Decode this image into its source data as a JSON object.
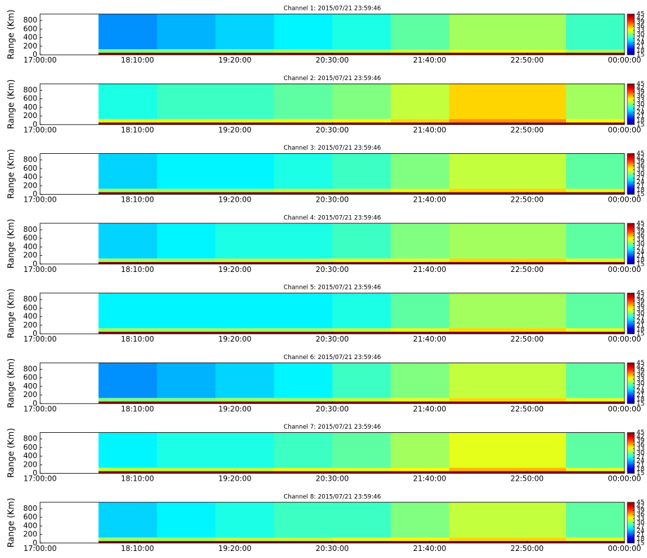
{
  "chart_data": [
    {
      "type": "heatmap",
      "title": "Channel 1: 2015/07/21 23:59:46",
      "ylabel": "Range (Km)",
      "colormap": "jet",
      "x_bins": [
        42,
        84,
        126,
        168,
        210,
        252,
        294,
        336,
        378,
        420
      ],
      "y_bins": [
        0,
        50,
        130,
        950
      ],
      "z": [
        [
          45,
          45,
          45,
          45,
          45,
          45,
          45,
          45,
          45
        ],
        [
          30,
          30,
          30,
          31,
          31,
          32,
          33,
          33,
          31
        ],
        [
          23,
          24,
          25,
          26,
          27,
          29,
          31,
          31,
          28
        ]
      ],
      "xlim": [
        0,
        420
      ],
      "xticks": [
        {
          "value": 0,
          "label": "17:00:00"
        },
        {
          "value": 70,
          "label": "18:10:00"
        },
        {
          "value": 140,
          "label": "19:20:00"
        },
        {
          "value": 210,
          "label": "20:30:00"
        },
        {
          "value": 280,
          "label": "21:40:00"
        },
        {
          "value": 350,
          "label": "22:50:00"
        },
        {
          "value": 420,
          "label": "00:00:00"
        }
      ],
      "ylim": [
        0,
        950
      ],
      "yticks": [
        0,
        200,
        400,
        600,
        800
      ],
      "clim": [
        15,
        45
      ],
      "cticks": [
        15,
        18,
        21,
        24,
        27,
        30,
        33,
        36,
        39,
        42,
        45
      ]
    },
    {
      "type": "heatmap",
      "title": "Channel 2: 2015/07/21 23:59:46",
      "ylabel": "Range (Km)",
      "colormap": "jet",
      "x_bins": [
        42,
        84,
        126,
        168,
        210,
        252,
        294,
        336,
        378,
        420
      ],
      "y_bins": [
        0,
        50,
        130,
        950
      ],
      "z": [
        [
          45,
          45,
          45,
          45,
          45,
          45,
          45,
          45,
          45
        ],
        [
          33,
          33,
          33,
          33,
          34,
          35,
          37,
          37,
          34
        ],
        [
          27,
          28,
          28,
          29,
          30,
          32,
          35,
          35,
          31
        ]
      ],
      "xlim": [
        0,
        420
      ],
      "xticks": [
        {
          "value": 0,
          "label": "17:00:00"
        },
        {
          "value": 70,
          "label": "18:10:00"
        },
        {
          "value": 140,
          "label": "19:20:00"
        },
        {
          "value": 210,
          "label": "20:30:00"
        },
        {
          "value": 280,
          "label": "21:40:00"
        },
        {
          "value": 350,
          "label": "22:50:00"
        },
        {
          "value": 420,
          "label": "00:00:00"
        }
      ],
      "ylim": [
        0,
        950
      ],
      "yticks": [
        0,
        200,
        400,
        600,
        800
      ],
      "clim": [
        15,
        45
      ],
      "cticks": [
        15,
        18,
        21,
        24,
        27,
        30,
        33,
        36,
        39,
        42,
        45
      ]
    },
    {
      "type": "heatmap",
      "title": "Channel 3: 2015/07/21 23:59:46",
      "ylabel": "Range (Km)",
      "colormap": "jet",
      "x_bins": [
        42,
        84,
        126,
        168,
        210,
        252,
        294,
        336,
        378,
        420
      ],
      "y_bins": [
        0,
        50,
        130,
        950
      ],
      "z": [
        [
          45,
          45,
          45,
          45,
          45,
          45,
          45,
          45,
          45
        ],
        [
          31,
          31,
          31,
          32,
          32,
          33,
          35,
          35,
          33
        ],
        [
          25,
          26,
          26,
          27,
          28,
          30,
          32,
          32,
          29
        ]
      ],
      "xlim": [
        0,
        420
      ],
      "xticks": [
        {
          "value": 0,
          "label": "17:00:00"
        },
        {
          "value": 70,
          "label": "18:10:00"
        },
        {
          "value": 140,
          "label": "19:20:00"
        },
        {
          "value": 210,
          "label": "20:30:00"
        },
        {
          "value": 280,
          "label": "21:40:00"
        },
        {
          "value": 350,
          "label": "22:50:00"
        },
        {
          "value": 420,
          "label": "00:00:00"
        }
      ],
      "ylim": [
        0,
        950
      ],
      "yticks": [
        0,
        200,
        400,
        600,
        800
      ],
      "clim": [
        15,
        45
      ],
      "cticks": [
        15,
        18,
        21,
        24,
        27,
        30,
        33,
        36,
        39,
        42,
        45
      ]
    },
    {
      "type": "heatmap",
      "title": "Channel 4: 2015/07/21 23:59:46",
      "ylabel": "Range (Km)",
      "colormap": "jet",
      "x_bins": [
        42,
        84,
        126,
        168,
        210,
        252,
        294,
        336,
        378,
        420
      ],
      "y_bins": [
        0,
        50,
        130,
        950
      ],
      "z": [
        [
          45,
          45,
          45,
          45,
          45,
          45,
          45,
          45,
          45
        ],
        [
          31,
          31,
          32,
          32,
          33,
          33,
          35,
          35,
          33
        ],
        [
          25,
          26,
          27,
          27,
          28,
          30,
          31,
          31,
          29
        ]
      ],
      "xlim": [
        0,
        420
      ],
      "xticks": [
        {
          "value": 0,
          "label": "17:00:00"
        },
        {
          "value": 70,
          "label": "18:10:00"
        },
        {
          "value": 140,
          "label": "19:20:00"
        },
        {
          "value": 210,
          "label": "20:30:00"
        },
        {
          "value": 280,
          "label": "21:40:00"
        },
        {
          "value": 350,
          "label": "22:50:00"
        },
        {
          "value": 420,
          "label": "00:00:00"
        }
      ],
      "ylim": [
        0,
        950
      ],
      "yticks": [
        0,
        200,
        400,
        600,
        800
      ],
      "clim": [
        15,
        45
      ],
      "cticks": [
        15,
        18,
        21,
        24,
        27,
        30,
        33,
        36,
        39,
        42,
        45
      ]
    },
    {
      "type": "heatmap",
      "title": "Channel 5: 2015/07/21 23:59:46",
      "ylabel": "Range (Km)",
      "colormap": "jet",
      "x_bins": [
        42,
        84,
        126,
        168,
        210,
        252,
        294,
        336,
        378,
        420
      ],
      "y_bins": [
        0,
        50,
        130,
        950
      ],
      "z": [
        [
          45,
          45,
          45,
          45,
          45,
          45,
          45,
          45,
          45
        ],
        [
          31,
          31,
          31,
          31,
          32,
          33,
          35,
          35,
          33
        ],
        [
          26,
          26,
          26,
          26,
          27,
          29,
          31,
          31,
          29
        ]
      ],
      "xlim": [
        0,
        420
      ],
      "xticks": [
        {
          "value": 0,
          "label": "17:00:00"
        },
        {
          "value": 70,
          "label": "18:10:00"
        },
        {
          "value": 140,
          "label": "19:20:00"
        },
        {
          "value": 210,
          "label": "20:30:00"
        },
        {
          "value": 280,
          "label": "21:40:00"
        },
        {
          "value": 350,
          "label": "22:50:00"
        },
        {
          "value": 420,
          "label": "00:00:00"
        }
      ],
      "ylim": [
        0,
        950
      ],
      "yticks": [
        0,
        200,
        400,
        600,
        800
      ],
      "clim": [
        15,
        45
      ],
      "cticks": [
        15,
        18,
        21,
        24,
        27,
        30,
        33,
        36,
        39,
        42,
        45
      ]
    },
    {
      "type": "heatmap",
      "title": "Channel 6: 2015/07/21 23:59:46",
      "ylabel": "Range (Km)",
      "colormap": "jet",
      "x_bins": [
        42,
        84,
        126,
        168,
        210,
        252,
        294,
        336,
        378,
        420
      ],
      "y_bins": [
        0,
        50,
        130,
        950
      ],
      "z": [
        [
          45,
          45,
          45,
          45,
          45,
          45,
          45,
          45,
          45
        ],
        [
          30,
          30,
          31,
          31,
          32,
          33,
          35,
          35,
          33
        ],
        [
          23,
          24,
          25,
          26,
          28,
          30,
          32,
          32,
          29
        ]
      ],
      "xlim": [
        0,
        420
      ],
      "xticks": [
        {
          "value": 0,
          "label": "17:00:00"
        },
        {
          "value": 70,
          "label": "18:10:00"
        },
        {
          "value": 140,
          "label": "19:20:00"
        },
        {
          "value": 210,
          "label": "20:30:00"
        },
        {
          "value": 280,
          "label": "21:40:00"
        },
        {
          "value": 350,
          "label": "22:50:00"
        },
        {
          "value": 420,
          "label": "00:00:00"
        }
      ],
      "ylim": [
        0,
        950
      ],
      "yticks": [
        0,
        200,
        400,
        600,
        800
      ],
      "clim": [
        15,
        45
      ],
      "cticks": [
        15,
        18,
        21,
        24,
        27,
        30,
        33,
        36,
        39,
        42,
        45
      ]
    },
    {
      "type": "heatmap",
      "title": "Channel 7: 2015/07/21 23:59:46",
      "ylabel": "Range (Km)",
      "colormap": "jet",
      "x_bins": [
        42,
        84,
        126,
        168,
        210,
        252,
        294,
        336,
        378,
        420
      ],
      "y_bins": [
        0,
        50,
        130,
        950
      ],
      "z": [
        [
          45,
          45,
          45,
          45,
          45,
          45,
          45,
          45,
          45
        ],
        [
          32,
          32,
          32,
          33,
          33,
          34,
          36,
          36,
          33
        ],
        [
          26,
          27,
          27,
          28,
          29,
          31,
          33,
          33,
          29
        ]
      ],
      "xlim": [
        0,
        420
      ],
      "xticks": [
        {
          "value": 0,
          "label": "17:00:00"
        },
        {
          "value": 70,
          "label": "18:10:00"
        },
        {
          "value": 140,
          "label": "19:20:00"
        },
        {
          "value": 210,
          "label": "20:30:00"
        },
        {
          "value": 280,
          "label": "21:40:00"
        },
        {
          "value": 350,
          "label": "22:50:00"
        },
        {
          "value": 420,
          "label": "00:00:00"
        }
      ],
      "ylim": [
        0,
        950
      ],
      "yticks": [
        0,
        200,
        400,
        600,
        800
      ],
      "clim": [
        15,
        45
      ],
      "cticks": [
        15,
        18,
        21,
        24,
        27,
        30,
        33,
        36,
        39,
        42,
        45
      ]
    },
    {
      "type": "heatmap",
      "title": "Channel 8: 2015/07/21 23:59:46",
      "ylabel": "Range (Km)",
      "colormap": "jet",
      "x_bins": [
        42,
        84,
        126,
        168,
        210,
        252,
        294,
        336,
        378,
        420
      ],
      "y_bins": [
        0,
        50,
        130,
        950
      ],
      "z": [
        [
          45,
          45,
          45,
          45,
          45,
          45,
          45,
          45,
          45
        ],
        [
          31,
          31,
          32,
          32,
          33,
          34,
          35,
          35,
          33
        ],
        [
          25,
          26,
          27,
          28,
          28,
          30,
          32,
          32,
          29
        ]
      ],
      "xlim": [
        0,
        420
      ],
      "xticks": [
        {
          "value": 0,
          "label": "17:00:00"
        },
        {
          "value": 70,
          "label": "18:10:00"
        },
        {
          "value": 140,
          "label": "19:20:00"
        },
        {
          "value": 210,
          "label": "20:30:00"
        },
        {
          "value": 280,
          "label": "21:40:00"
        },
        {
          "value": 350,
          "label": "22:50:00"
        },
        {
          "value": 420,
          "label": "00:00:00"
        }
      ],
      "ylim": [
        0,
        950
      ],
      "yticks": [
        0,
        200,
        400,
        600,
        800
      ],
      "clim": [
        15,
        45
      ],
      "cticks": [
        15,
        18,
        21,
        24,
        27,
        30,
        33,
        36,
        39,
        42,
        45
      ]
    }
  ]
}
